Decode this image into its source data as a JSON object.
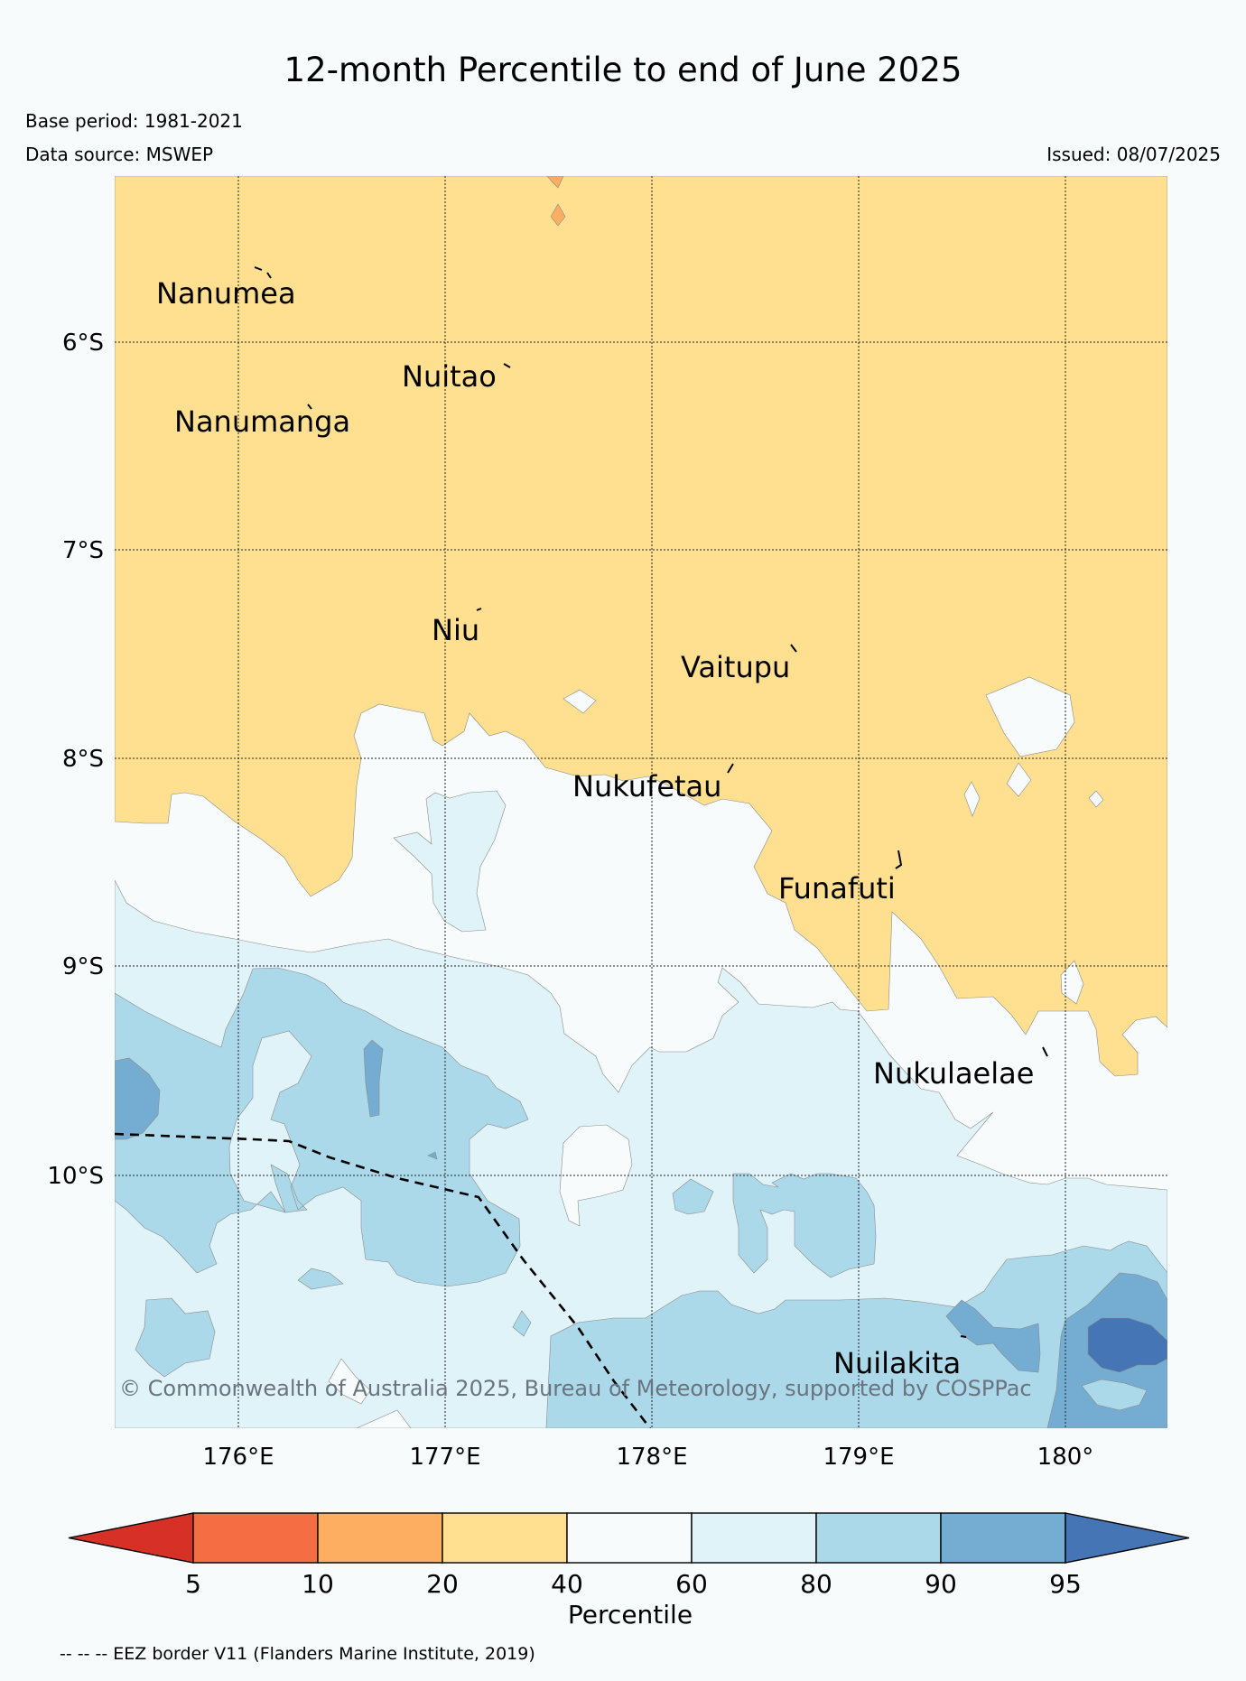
{
  "title": "12-month Percentile to end of June 2025",
  "base_period": "Base period: 1981-2021",
  "data_source": "Data source: MSWEP",
  "issued": "Issued: 08/07/2025",
  "copyright": "© Commonwealth of Australia 2025, Bureau of Meteorology, supported by COSPPac",
  "footnote": "-- -- -- EEZ border V11 (Flanders Marine Institute, 2019)",
  "lat_labels": [
    "6°S",
    "7°S",
    "8°S",
    "9°S",
    "10°S"
  ],
  "lon_labels": [
    "176°E",
    "177°E",
    "178°E",
    "179°E",
    "180°"
  ],
  "islands": [
    "Nanumea",
    "Nuitao",
    "Nanumanga",
    "Niu",
    "Vaitupu",
    "Nukufetau",
    "Funafuti",
    "Nukulaelae",
    "Nuilakita"
  ],
  "colorbar": {
    "label": "Percentile",
    "ticks": [
      "5",
      "10",
      "20",
      "40",
      "60",
      "80",
      "90",
      "95"
    ],
    "colors": [
      "#d73027",
      "#f46d43",
      "#fdae61",
      "#fee090",
      "#f7fbfc",
      "#e0f3f8",
      "#abd9e9",
      "#74add1",
      "#4575b4"
    ]
  }
}
